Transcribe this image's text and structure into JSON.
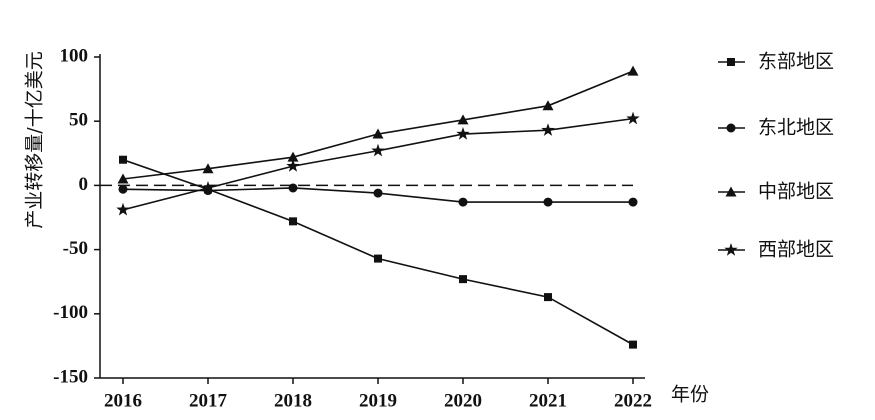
{
  "chart_data": {
    "type": "line",
    "y_label": "产业转移量/十亿美元",
    "x_label": "年份",
    "x": [
      2016,
      2017,
      2018,
      2019,
      2020,
      2021,
      2022
    ],
    "xlim": [
      2016,
      2022
    ],
    "xticks": [
      2016,
      2017,
      2018,
      2019,
      2020,
      2021,
      2022
    ],
    "ylim": [
      -150,
      100
    ],
    "yticks": [
      -150,
      -100,
      -50,
      0,
      50,
      100
    ],
    "hline": {
      "value": 0,
      "style": "dashed"
    },
    "legend": "right",
    "series": [
      {
        "name": "东部地区",
        "color": "#111111",
        "marker": "square",
        "values": [
          20,
          -3,
          -28,
          -57,
          -73,
          -87,
          -124
        ]
      },
      {
        "name": "东北地区",
        "color": "#111111",
        "marker": "circle",
        "values": [
          -3,
          -4,
          -2,
          -6,
          -13,
          -13,
          -13
        ]
      },
      {
        "name": "中部地区",
        "color": "#111111",
        "marker": "triangle",
        "values": [
          5,
          13,
          22,
          40,
          51,
          62,
          89
        ]
      },
      {
        "name": "西部地区",
        "color": "#111111",
        "marker": "star",
        "values": [
          -19,
          -2,
          15,
          27,
          40,
          43,
          52
        ]
      }
    ]
  }
}
